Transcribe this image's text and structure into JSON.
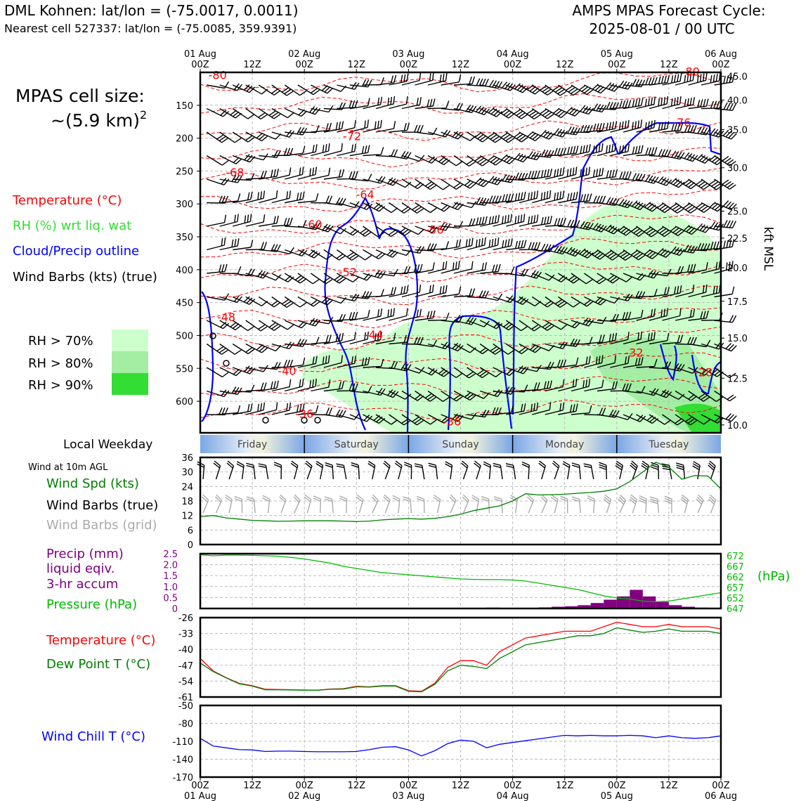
{
  "header": {
    "station": "DML Kohnen: lat/lon = (-75.0017, 0.0011)",
    "nearest": "Nearest cell 527337: lat/lon = (-75.0085, 359.9391)",
    "cycle_title": "AMPS MPAS Forecast Cycle:",
    "cycle_value": "2025-08-01 / 00 UTC"
  },
  "sidebar": {
    "cell_size_label": "MPAS cell size:",
    "cell_size_value": "~(5.9 km)",
    "cell_size_exp": "2",
    "legend_temperature": "Temperature (°C)",
    "legend_rh": "RH (%) wrt liq. wat",
    "legend_cloud": "Cloud/Precip outline",
    "legend_wind": "Wind Barbs (kts) (true)",
    "rh_levels": [
      "RH > 70%",
      "RH > 80%",
      "RH > 90%"
    ],
    "weekday_label": "Local Weekday",
    "wind10_title": "Wind at 10m AGL",
    "wind_speed_label": "Wind Spd (kts)",
    "wind_barbs_true_label": "Wind Barbs (true)",
    "wind_barbs_grid_label": "Wind Barbs (grid)",
    "precip_label_1": "Precip (mm)",
    "precip_label_2": "liquid eqiv.",
    "precip_label_3": "3-hr accum",
    "pressure_label": "Pressure (hPa)",
    "temp_label": "Temperature (°C)",
    "dew_label": "Dew Point T (°C)",
    "windchill_label": "Wind Chill T (°C)"
  },
  "colors": {
    "temperature": "#ff0000",
    "rh_text": "#33dd33",
    "cloud": "#0000ff",
    "rh70": "#ccffcc",
    "rh80": "#a3eea3",
    "rh90": "#33dd33",
    "wind_speed": "#008000",
    "grid_barb": "#aaaaaa",
    "precip": "#800080",
    "pressure": "#00bb00",
    "dew": "#008000",
    "windchill": "#0000ff"
  },
  "chart_data": [
    {
      "type": "heatmap",
      "name": "time-height cross section",
      "x_ticks_top": [
        {
          "day": "01 Aug",
          "hour": "00Z"
        },
        {
          "day": "",
          "hour": "12Z"
        },
        {
          "day": "02 Aug",
          "hour": "00Z"
        },
        {
          "day": "",
          "hour": "12Z"
        },
        {
          "day": "03 Aug",
          "hour": "00Z"
        },
        {
          "day": "",
          "hour": "12Z"
        },
        {
          "day": "04 Aug",
          "hour": "00Z"
        },
        {
          "day": "",
          "hour": "12Z"
        },
        {
          "day": "05 Aug",
          "hour": "00Z"
        },
        {
          "day": "",
          "hour": "12Z"
        },
        {
          "day": "06 Aug",
          "hour": "00Z"
        }
      ],
      "forecast_hours_range": [
        0,
        120
      ],
      "pressure_ticks_hpa": [
        150,
        200,
        250,
        300,
        350,
        400,
        450,
        500,
        550,
        600
      ],
      "pressure_range_hpa": [
        100,
        648
      ],
      "kft_ticks": [
        "45.0",
        "40.0",
        "35.0",
        "30.0",
        "25.0",
        "22.5",
        "20.0",
        "17.5",
        "15.0",
        "12.5",
        "10.0"
      ],
      "kft_tick_pressures": [
        106,
        142,
        187,
        245,
        311,
        352,
        397,
        448,
        504,
        565,
        636
      ],
      "right_axis_label": "kft MSL",
      "temperature_contour_labels": [
        {
          "value": "-80",
          "hour": 4,
          "p": 110
        },
        {
          "value": "-80",
          "hour": 113,
          "p": 105
        },
        {
          "value": "-76",
          "hour": 111,
          "p": 182
        },
        {
          "value": "-72",
          "hour": 35,
          "p": 203
        },
        {
          "value": "-68",
          "hour": 8,
          "p": 258
        },
        {
          "value": "-64",
          "hour": 38,
          "p": 292
        },
        {
          "value": "-60",
          "hour": 26,
          "p": 337
        },
        {
          "value": "-56",
          "hour": 54,
          "p": 345
        },
        {
          "value": "-52",
          "hour": 34,
          "p": 410
        },
        {
          "value": "-48",
          "hour": 6,
          "p": 478
        },
        {
          "value": "-44",
          "hour": 40,
          "p": 505
        },
        {
          "value": "-40",
          "hour": 20,
          "p": 560
        },
        {
          "value": "-36",
          "hour": 24,
          "p": 625
        },
        {
          "value": "-36",
          "hour": 58,
          "p": 637
        },
        {
          "value": "-32",
          "hour": 100,
          "p": 532
        },
        {
          "value": "-28",
          "hour": 116,
          "p": 562
        }
      ]
    },
    {
      "type": "bar",
      "name": "local weekday",
      "categories": [
        "Friday",
        "Saturday",
        "Sunday",
        "Monday",
        "Tuesday"
      ]
    },
    {
      "type": "line",
      "name": "wind at 10m",
      "x_hours": [
        0,
        3,
        6,
        9,
        12,
        15,
        18,
        21,
        24,
        27,
        30,
        33,
        36,
        39,
        42,
        45,
        48,
        51,
        54,
        57,
        60,
        63,
        66,
        69,
        72,
        75,
        78,
        81,
        84,
        87,
        90,
        93,
        96,
        99,
        102,
        105,
        108,
        111,
        114,
        117,
        120
      ],
      "series": [
        {
          "name": "Wind Spd (kts)",
          "values": [
            11.5,
            12,
            11,
            10.5,
            10,
            9.8,
            9.6,
            9.7,
            9.8,
            9.8,
            9.8,
            9.7,
            9.5,
            9.7,
            10.2,
            10.5,
            10.7,
            10.5,
            10.8,
            11.5,
            12.5,
            14,
            15,
            16,
            18,
            21,
            20.5,
            20.6,
            20.8,
            21.2,
            21.5,
            22,
            23,
            26,
            30,
            34,
            32,
            27,
            28.5,
            28.3,
            23
          ]
        }
      ],
      "y_ticks": [
        0,
        6,
        12,
        18,
        24,
        30,
        36
      ],
      "ylim": [
        0,
        36
      ]
    },
    {
      "type": "line",
      "name": "precip and pressure",
      "x_hours": [
        0,
        3,
        6,
        9,
        12,
        15,
        18,
        21,
        24,
        27,
        30,
        33,
        36,
        39,
        42,
        45,
        48,
        51,
        54,
        57,
        60,
        63,
        66,
        69,
        72,
        75,
        78,
        81,
        84,
        87,
        90,
        93,
        96,
        99,
        102,
        105,
        108,
        111,
        114,
        117,
        120
      ],
      "series": [
        {
          "name": "Pressure (hPa)",
          "values": [
            672.5,
            672,
            672.3,
            672.3,
            672.2,
            672,
            671.8,
            671.2,
            670.5,
            669.5,
            668.5,
            667,
            666,
            665,
            664,
            663.5,
            663,
            662.5,
            662,
            661.5,
            661,
            660.8,
            660.7,
            660.7,
            660.5,
            660,
            659,
            658,
            657,
            656,
            654.5,
            653,
            652,
            651.5,
            650.5,
            650.2,
            650.5,
            651.5,
            652.5,
            653.5,
            654.5
          ]
        },
        {
          "name": "Precip (mm)",
          "values": [
            0,
            0,
            0,
            0,
            0,
            0,
            0,
            0,
            0,
            0,
            0,
            0,
            0,
            0,
            0,
            0,
            0,
            0,
            0,
            0,
            0,
            0.02,
            0.04,
            0.03,
            0.01,
            0.02,
            0.05,
            0.08,
            0.1,
            0.15,
            0.25,
            0.4,
            0.55,
            0.85,
            0.55,
            0.3,
            0.15,
            0.08,
            0.04,
            0.02,
            0
          ]
        }
      ],
      "precip_ticks": [
        "0",
        "0.5",
        "1.0",
        "1.5",
        "2.0",
        "2.5"
      ],
      "precip_range": [
        0,
        2.5
      ],
      "pressure_ticks": [
        "647",
        "652",
        "657",
        "662",
        "667",
        "672"
      ],
      "pressure_range": [
        647,
        673
      ],
      "pressure_unit": "(hPa)"
    },
    {
      "type": "line",
      "name": "temperature and dew point",
      "x_hours": [
        0,
        3,
        6,
        9,
        12,
        15,
        18,
        21,
        24,
        27,
        30,
        33,
        36,
        39,
        42,
        45,
        48,
        51,
        54,
        57,
        60,
        63,
        66,
        69,
        72,
        75,
        78,
        81,
        84,
        87,
        90,
        93,
        96,
        99,
        102,
        105,
        108,
        111,
        114,
        117,
        120
      ],
      "series": [
        {
          "name": "Temperature (°C)",
          "values": [
            -44,
            -49.5,
            -52.5,
            -55,
            -56,
            -57.6,
            -57.7,
            -57.8,
            -57.9,
            -58,
            -57.5,
            -57.3,
            -56.3,
            -56.5,
            -56,
            -56,
            -58.2,
            -58.5,
            -55,
            -48,
            -45,
            -45,
            -47,
            -41,
            -38,
            -35,
            -34,
            -33,
            -32,
            -32,
            -32,
            -30,
            -28,
            -29,
            -30,
            -30,
            -29,
            -30,
            -30,
            -30,
            -31
          ]
        },
        {
          "name": "Dew Point T (°C)",
          "values": [
            -46,
            -49.8,
            -52.6,
            -55.2,
            -56.2,
            -57.8,
            -57.8,
            -57.9,
            -58,
            -58,
            -57.6,
            -57.5,
            -56.5,
            -56.6,
            -56.2,
            -56.2,
            -58.5,
            -58.7,
            -55.5,
            -49.5,
            -47,
            -47.5,
            -48.5,
            -44,
            -41,
            -38,
            -37,
            -36,
            -35,
            -34,
            -34,
            -33,
            -30.5,
            -31.5,
            -32.5,
            -32,
            -31,
            -32,
            -32,
            -32,
            -33
          ]
        }
      ],
      "y_ticks": [
        -26,
        -33,
        -40,
        -47,
        -54,
        -61
      ],
      "ylim": [
        -61,
        -26
      ]
    },
    {
      "type": "line",
      "name": "wind chill",
      "x_hours": [
        0,
        3,
        6,
        9,
        12,
        15,
        18,
        21,
        24,
        27,
        30,
        33,
        36,
        39,
        42,
        45,
        48,
        51,
        54,
        57,
        60,
        63,
        66,
        69,
        72,
        75,
        78,
        81,
        84,
        87,
        90,
        93,
        96,
        99,
        102,
        105,
        108,
        111,
        114,
        117,
        120
      ],
      "series": [
        {
          "name": "Wind Chill T (°C)",
          "values": [
            -105,
            -118,
            -121,
            -124,
            -124.5,
            -127,
            -126.5,
            -126.5,
            -127,
            -127.5,
            -127.5,
            -127.5,
            -127,
            -124,
            -120,
            -119,
            -124.5,
            -134.5,
            -126,
            -114,
            -108,
            -110,
            -121,
            -115,
            -112,
            -109,
            -106,
            -103,
            -100,
            -101,
            -100,
            -101,
            -101,
            -100,
            -101,
            -104,
            -101,
            -104,
            -105,
            -104,
            -101
          ]
        }
      ],
      "y_ticks": [
        -50,
        -80,
        -110,
        -140,
        -170
      ],
      "ylim": [
        -170,
        -50
      ]
    }
  ],
  "bottom_axis": {
    "hours": [
      "00Z",
      "12Z",
      "00Z",
      "12Z",
      "00Z",
      "12Z",
      "00Z",
      "12Z",
      "00Z",
      "12Z",
      "00Z"
    ],
    "days": [
      "01 Aug",
      "",
      "02 Aug",
      "",
      "03 Aug",
      "",
      "04 Aug",
      "",
      "05 Aug",
      "",
      "06 Aug"
    ]
  }
}
